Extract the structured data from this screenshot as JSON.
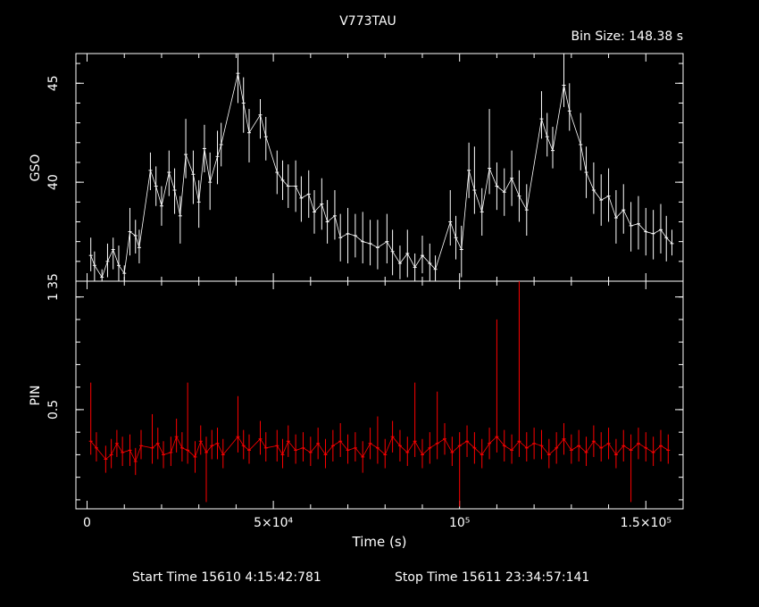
{
  "header": {
    "title": "V773TAU",
    "bin_size": "Bin Size: 148.38 s"
  },
  "footer": {
    "start_label": "Start Time 15610  4:15:42:781",
    "stop_label": "Stop Time 15611 23:34:57:141"
  },
  "colors": {
    "background": "#000000",
    "axes": "#ffffff",
    "gso_series": "#ffffff",
    "pin_series": "#ff0000"
  },
  "chart_data": [
    {
      "type": "line",
      "panel": "top",
      "title": "V773TAU",
      "ylabel": "GSO",
      "xlabel": "",
      "xlim": [
        -3000,
        160000
      ],
      "ylim": [
        35,
        46.5
      ],
      "yticks": [
        {
          "value": 35,
          "label": "35"
        },
        {
          "value": 40,
          "label": "40"
        },
        {
          "value": 45,
          "label": "45"
        }
      ],
      "series": [
        {
          "x": [
            1000,
            2000,
            4000,
            5500,
            7000,
            8500,
            10000,
            11500,
            13000,
            14000,
            17000,
            18500,
            20000,
            22000,
            23500,
            25000,
            26500,
            28500,
            30000,
            31500,
            33000,
            35000,
            36000,
            40500,
            42000,
            43500,
            46500,
            48000,
            51000,
            52500,
            54000,
            56000,
            57500,
            59500,
            61000,
            63000,
            64500,
            66500,
            68000,
            70000,
            72000,
            74000,
            76000,
            78000,
            80500,
            82000,
            84000,
            86000,
            88000,
            90000,
            92000,
            93500,
            97500,
            99000,
            100500,
            102500,
            104000,
            106000,
            108000,
            110000,
            112000,
            114000,
            116000,
            118000,
            122000,
            123500,
            125000,
            128000,
            129500,
            132500,
            134000,
            136000,
            138000,
            140000,
            142000,
            144000,
            146000,
            148000,
            150000,
            152000,
            154000,
            155500,
            157000
          ],
          "values": [
            36.3,
            35.8,
            35.2,
            36.0,
            36.6,
            35.8,
            35.4,
            37.5,
            37.3,
            36.7,
            40.6,
            39.8,
            38.8,
            40.5,
            39.6,
            38.3,
            41.4,
            40.4,
            39.0,
            41.7,
            40.0,
            41.3,
            41.9,
            45.5,
            44.0,
            42.5,
            43.4,
            42.3,
            40.5,
            40.1,
            39.8,
            39.8,
            39.2,
            39.4,
            38.5,
            38.9,
            38.0,
            38.3,
            37.2,
            37.4,
            37.3,
            37.0,
            36.9,
            36.7,
            37.0,
            36.5,
            35.9,
            36.4,
            35.7,
            36.3,
            35.9,
            35.6,
            38.0,
            37.2,
            36.6,
            40.6,
            39.6,
            38.5,
            40.7,
            39.8,
            39.5,
            40.2,
            39.3,
            38.6,
            43.2,
            42.3,
            41.6,
            44.9,
            43.6,
            41.9,
            40.5,
            39.6,
            39.1,
            39.3,
            38.2,
            38.6,
            37.8,
            37.9,
            37.5,
            37.4,
            37.6,
            37.2,
            36.9
          ],
          "low": [
            35.5,
            35.0,
            35.0,
            35.2,
            35.6,
            35.0,
            35.0,
            36.3,
            36.4,
            35.9,
            39.6,
            38.8,
            37.8,
            39.3,
            38.4,
            36.9,
            40.2,
            38.9,
            37.7,
            40.5,
            38.6,
            39.9,
            40.8,
            44.0,
            42.5,
            41.0,
            42.2,
            41.1,
            39.4,
            39.1,
            38.7,
            38.5,
            38.0,
            38.2,
            37.4,
            37.6,
            36.9,
            37.1,
            36.0,
            35.9,
            36.2,
            35.9,
            35.8,
            35.6,
            35.9,
            35.3,
            35.1,
            35.2,
            35.0,
            35.4,
            35.0,
            35.0,
            36.8,
            36.1,
            35.2,
            39.2,
            38.4,
            37.3,
            39.4,
            38.6,
            38.3,
            38.8,
            38.0,
            37.3,
            42.2,
            41.3,
            40.7,
            43.8,
            42.6,
            40.6,
            39.2,
            38.4,
            37.8,
            38.0,
            36.9,
            37.4,
            36.5,
            36.6,
            36.3,
            36.1,
            36.4,
            36.0,
            36.3
          ],
          "high": [
            37.2,
            36.5,
            35.6,
            36.9,
            37.2,
            36.8,
            35.8,
            38.7,
            38.1,
            37.6,
            41.5,
            40.8,
            39.8,
            41.6,
            40.7,
            39.3,
            43.2,
            41.6,
            40.1,
            42.9,
            41.5,
            42.6,
            43.0,
            46.5,
            45.3,
            43.7,
            44.2,
            43.3,
            41.6,
            41.1,
            40.9,
            41.1,
            40.3,
            40.6,
            39.6,
            40.2,
            39.1,
            39.6,
            38.4,
            38.7,
            38.4,
            38.5,
            38.1,
            38.1,
            38.4,
            37.6,
            36.8,
            37.6,
            36.4,
            37.3,
            36.9,
            36.3,
            39.6,
            38.3,
            37.8,
            42.0,
            41.8,
            39.7,
            43.7,
            41.0,
            40.7,
            41.6,
            40.6,
            39.9,
            44.6,
            43.5,
            42.8,
            46.5,
            45.0,
            43.5,
            41.8,
            41.0,
            40.4,
            40.7,
            39.6,
            39.9,
            39.0,
            39.3,
            38.7,
            38.6,
            38.9,
            38.3,
            37.6
          ]
        }
      ]
    },
    {
      "type": "line",
      "panel": "bottom",
      "ylabel": "PIN",
      "xlabel": "Time (s)",
      "xlim": [
        -3000,
        160000
      ],
      "ylim": [
        0.06,
        1.07
      ],
      "yticks": [
        {
          "value": 0.5,
          "label": "0.5"
        },
        {
          "value": 1,
          "label": "1"
        }
      ],
      "xticks": [
        {
          "value": 0,
          "label": "0"
        },
        {
          "value": 50000,
          "label": "5×10⁴"
        },
        {
          "value": 100000,
          "label": "10⁵"
        },
        {
          "value": 150000,
          "label": "1.5×10⁵"
        }
      ],
      "series": [
        {
          "x": [
            1000,
            2500,
            5000,
            6500,
            8000,
            9500,
            11500,
            13000,
            14500,
            17500,
            19000,
            20500,
            22500,
            24000,
            25500,
            27000,
            29000,
            30500,
            32000,
            33500,
            35000,
            36500,
            40500,
            42000,
            43500,
            46500,
            48000,
            51000,
            52500,
            54000,
            56000,
            58000,
            60000,
            62000,
            64000,
            66000,
            68000,
            70000,
            72000,
            74000,
            76000,
            78000,
            80000,
            82000,
            84000,
            86000,
            88000,
            90000,
            92000,
            94000,
            96000,
            98000,
            100000,
            102000,
            104000,
            106000,
            108000,
            110000,
            112000,
            114000,
            116000,
            118000,
            120000,
            122000,
            124000,
            126000,
            128000,
            130000,
            132000,
            134000,
            136000,
            138000,
            140000,
            142000,
            144000,
            146000,
            148000,
            150000,
            152000,
            154000,
            156000
          ],
          "values": [
            0.36,
            0.33,
            0.28,
            0.3,
            0.35,
            0.31,
            0.32,
            0.27,
            0.34,
            0.33,
            0.35,
            0.3,
            0.31,
            0.38,
            0.33,
            0.32,
            0.29,
            0.36,
            0.31,
            0.34,
            0.35,
            0.3,
            0.38,
            0.34,
            0.32,
            0.37,
            0.33,
            0.34,
            0.3,
            0.36,
            0.32,
            0.33,
            0.31,
            0.35,
            0.3,
            0.34,
            0.36,
            0.32,
            0.33,
            0.29,
            0.35,
            0.33,
            0.3,
            0.38,
            0.34,
            0.31,
            0.36,
            0.3,
            0.33,
            0.35,
            0.37,
            0.31,
            0.34,
            0.36,
            0.33,
            0.3,
            0.35,
            0.38,
            0.34,
            0.32,
            0.36,
            0.33,
            0.35,
            0.34,
            0.3,
            0.33,
            0.37,
            0.32,
            0.34,
            0.31,
            0.36,
            0.33,
            0.35,
            0.3,
            0.34,
            0.32,
            0.35,
            0.33,
            0.31,
            0.34,
            0.32
          ],
          "low": [
            0.3,
            0.27,
            0.22,
            0.24,
            0.29,
            0.25,
            0.25,
            0.21,
            0.28,
            0.26,
            0.28,
            0.24,
            0.25,
            0.31,
            0.27,
            0.26,
            0.22,
            0.3,
            0.09,
            0.28,
            0.28,
            0.24,
            0.31,
            0.28,
            0.26,
            0.3,
            0.27,
            0.27,
            0.24,
            0.29,
            0.26,
            0.27,
            0.25,
            0.28,
            0.24,
            0.27,
            0.29,
            0.26,
            0.27,
            0.22,
            0.28,
            0.26,
            0.24,
            0.31,
            0.27,
            0.25,
            0.29,
            0.24,
            0.26,
            0.28,
            0.3,
            0.25,
            0.07,
            0.29,
            0.26,
            0.24,
            0.28,
            0.31,
            0.27,
            0.26,
            0.29,
            0.27,
            0.28,
            0.28,
            0.24,
            0.26,
            0.3,
            0.26,
            0.27,
            0.25,
            0.29,
            0.27,
            0.28,
            0.24,
            0.27,
            0.09,
            0.28,
            0.27,
            0.25,
            0.27,
            0.26
          ],
          "high": [
            0.62,
            0.4,
            0.34,
            0.37,
            0.41,
            0.38,
            0.39,
            0.33,
            0.41,
            0.48,
            0.42,
            0.36,
            0.38,
            0.46,
            0.4,
            0.62,
            0.36,
            0.43,
            0.38,
            0.41,
            0.42,
            0.37,
            0.56,
            0.41,
            0.39,
            0.45,
            0.4,
            0.41,
            0.37,
            0.43,
            0.39,
            0.4,
            0.38,
            0.42,
            0.37,
            0.41,
            0.44,
            0.39,
            0.4,
            0.36,
            0.42,
            0.47,
            0.37,
            0.45,
            0.41,
            0.38,
            0.62,
            0.37,
            0.4,
            0.58,
            0.44,
            0.38,
            0.4,
            0.43,
            0.4,
            0.37,
            0.42,
            0.9,
            0.41,
            0.39,
            1.07,
            0.4,
            0.42,
            0.41,
            0.37,
            0.4,
            0.44,
            0.39,
            0.41,
            0.38,
            0.43,
            0.4,
            0.42,
            0.37,
            0.41,
            0.39,
            0.42,
            0.4,
            0.38,
            0.41,
            0.39
          ]
        }
      ]
    }
  ]
}
